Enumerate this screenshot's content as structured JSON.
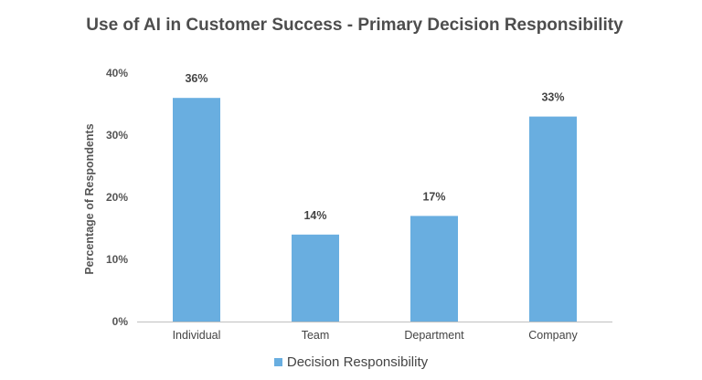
{
  "colors": {
    "bar": "#69aee0",
    "grid": "#d9d9d9",
    "axis": "#bfbfbf"
  },
  "chart_data": {
    "type": "bar",
    "title": "Use of AI in Customer Success - Primary Decision Responsibility",
    "xlabel": "",
    "ylabel": "Percentage of Respondents",
    "categories": [
      "Individual",
      "Team",
      "Department",
      "Company"
    ],
    "series": [
      {
        "name": "Decision Responsibility",
        "values": [
          36,
          14,
          17,
          33
        ],
        "labels": [
          "36%",
          "14%",
          "17%",
          "33%"
        ]
      }
    ],
    "ylim": [
      0,
      40
    ],
    "yticks": [
      0,
      10,
      20,
      30,
      40
    ],
    "ytick_labels": [
      "0%",
      "10%",
      "20%",
      "30%",
      "40%"
    ],
    "grid": false,
    "legend": "bottom-center"
  }
}
